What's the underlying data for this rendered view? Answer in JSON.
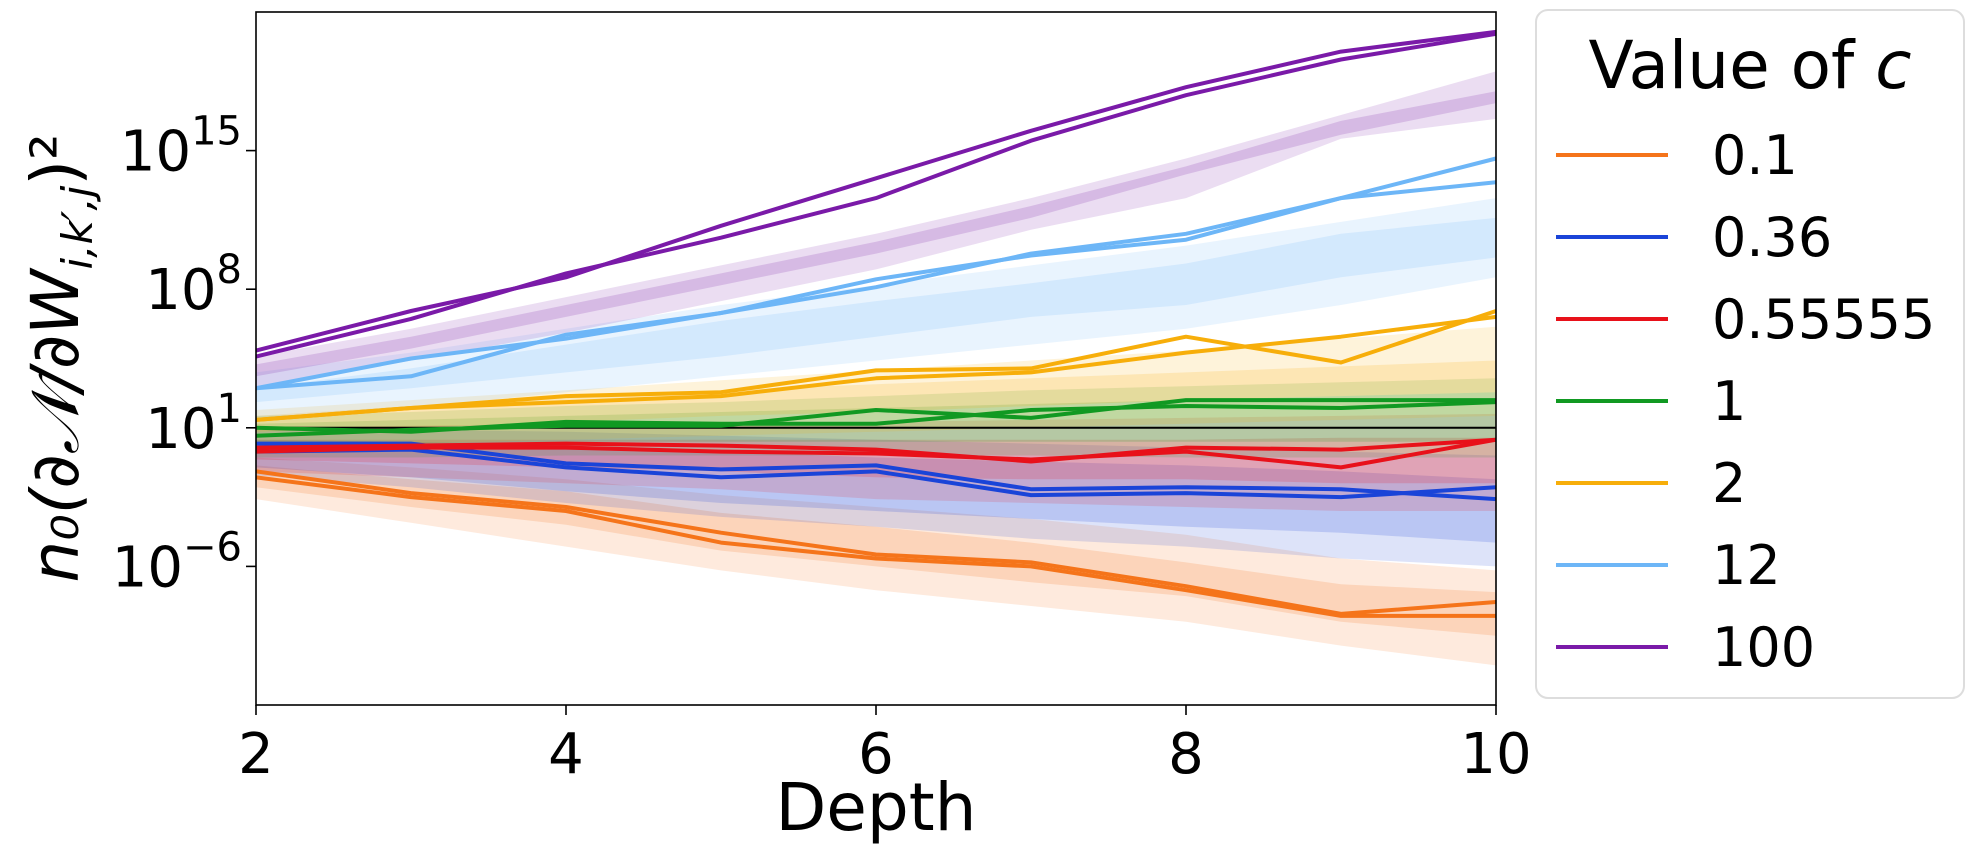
{
  "chart_data": {
    "type": "line",
    "xlabel": "Depth",
    "ylabel": "n₀(∂𝒩/∂W",
    "ylabel_sub": "i,k′,j",
    "ylabel_tail": ")²",
    "x_ticks": [
      2,
      4,
      6,
      8,
      10
    ],
    "y_tick_exponents": [
      -6,
      1,
      8,
      15
    ],
    "y_scale": "log",
    "xlim": [
      2,
      10
    ],
    "ylim_log10": [
      -13,
      22
    ],
    "grid": false,
    "reference_line_log10": 1,
    "legend": {
      "title_prefix": "Value of ",
      "title_var": "c",
      "placement": "outside-right"
    },
    "x": [
      2,
      3,
      4,
      5,
      6,
      7,
      8,
      9,
      10
    ],
    "series": [
      {
        "name": "0.1",
        "color": "#f5741a",
        "lines": [
          [
            -1.5,
            -2.5,
            -3.2,
            -4.8,
            -5.6,
            -6.0,
            -7.2,
            -8.5,
            -8.5
          ],
          [
            -1.2,
            -2.3,
            -3.0,
            -4.3,
            -5.4,
            -5.8,
            -7.0,
            -8.4,
            -7.8
          ]
        ],
        "band_outer_low": [
          -2.6,
          -3.8,
          -5.0,
          -6.2,
          -7.2,
          -8.0,
          -8.8,
          -10.0,
          -11.0
        ],
        "band_outer_high": [
          -0.5,
          -1.0,
          -1.6,
          -2.4,
          -3.0,
          -3.6,
          -4.4,
          -5.6,
          -6.2
        ],
        "band_inner_low": [
          -2.0,
          -3.0,
          -3.9,
          -5.2,
          -6.0,
          -6.8,
          -7.5,
          -8.8,
          -9.5
        ],
        "band_inner_high": [
          -0.9,
          -1.6,
          -2.2,
          -3.3,
          -4.0,
          -4.8,
          -5.8,
          -6.9,
          -7.3
        ]
      },
      {
        "name": "0.36",
        "color": "#1a44d8",
        "lines": [
          [
            -0.2,
            -0.1,
            -1.0,
            -1.5,
            -1.2,
            -2.4,
            -2.3,
            -2.5,
            -2.0
          ],
          [
            0.2,
            0.2,
            -0.8,
            -1.1,
            -0.9,
            -2.1,
            -2.0,
            -2.1,
            -2.6
          ]
        ],
        "band_outer_low": [
          -1.4,
          -2.0,
          -2.8,
          -3.5,
          -4.0,
          -4.6,
          -5.0,
          -5.6,
          -6.0
        ],
        "band_outer_high": [
          1.0,
          0.9,
          0.8,
          0.6,
          0.4,
          0.2,
          0.0,
          -0.2,
          -0.4
        ],
        "band_inner_low": [
          -1.0,
          -1.5,
          -2.2,
          -2.8,
          -3.2,
          -3.6,
          -4.0,
          -4.3,
          -4.8
        ],
        "band_inner_high": [
          0.4,
          0.3,
          0.1,
          -0.2,
          -0.5,
          -0.7,
          -0.9,
          -1.2,
          -1.6
        ]
      },
      {
        "name": "0.55555",
        "color": "#e8111a",
        "lines": [
          [
            0.0,
            0.1,
            0.2,
            0.1,
            -0.1,
            -0.7,
            0.0,
            -0.1,
            0.4
          ],
          [
            -0.2,
            0.0,
            0.0,
            -0.2,
            -0.3,
            -0.6,
            -0.2,
            -1.0,
            0.4
          ]
        ],
        "band_outer_low": [
          -1.2,
          -1.5,
          -1.8,
          -2.1,
          -2.6,
          -2.8,
          -3.0,
          -3.2,
          -3.2
        ],
        "band_outer_high": [
          1.0,
          1.1,
          1.2,
          1.2,
          1.3,
          1.4,
          1.5,
          1.6,
          1.7
        ],
        "band_inner_low": [
          -0.6,
          -0.8,
          -1.0,
          -1.2,
          -1.5,
          -1.6,
          -1.6,
          -1.8,
          -1.8
        ],
        "band_inner_high": [
          0.4,
          0.4,
          0.4,
          0.4,
          0.4,
          0.4,
          0.4,
          0.5,
          0.5
        ]
      },
      {
        "name": "1",
        "color": "#119922",
        "lines": [
          [
            1.0,
            0.8,
            1.3,
            1.2,
            1.2,
            1.9,
            2.1,
            2.0,
            2.3
          ],
          [
            0.6,
            0.9,
            1.1,
            1.1,
            1.9,
            1.5,
            2.4,
            2.4,
            2.4
          ]
        ],
        "band_outer_low": [
          -0.5,
          -0.5,
          -0.4,
          -0.4,
          -0.4,
          -0.4,
          -0.5,
          -0.5,
          -0.5
        ],
        "band_outer_high": [
          1.6,
          1.8,
          2.1,
          2.3,
          2.6,
          2.9,
          3.1,
          3.3,
          3.5
        ],
        "band_inner_low": [
          0.2,
          0.2,
          0.3,
          0.3,
          0.3,
          0.3,
          0.3,
          0.3,
          0.3
        ],
        "band_inner_high": [
          1.2,
          1.4,
          1.6,
          1.8,
          2.0,
          2.2,
          2.4,
          2.6,
          2.8
        ]
      },
      {
        "name": "2",
        "color": "#f7ae0a",
        "lines": [
          [
            1.4,
            2.0,
            2.6,
            2.8,
            3.9,
            4.0,
            5.6,
            4.3,
            6.9
          ],
          [
            1.4,
            2.0,
            2.3,
            2.6,
            3.5,
            3.8,
            4.8,
            5.6,
            6.6
          ]
        ],
        "band_outer_low": [
          0.0,
          0.2,
          0.4,
          0.6,
          0.8,
          1.0,
          1.2,
          1.4,
          1.6
        ],
        "band_outer_high": [
          1.9,
          2.4,
          2.9,
          3.4,
          3.9,
          4.4,
          4.9,
          5.5,
          6.1
        ],
        "band_inner_low": [
          0.8,
          1.0,
          1.3,
          1.6,
          1.8,
          2.1,
          2.4,
          2.6,
          2.8
        ],
        "band_inner_high": [
          1.6,
          2.1,
          2.5,
          2.9,
          3.2,
          3.5,
          3.8,
          4.1,
          4.4
        ]
      },
      {
        "name": "12",
        "color": "#6db6f7",
        "lines": [
          [
            3.0,
            3.6,
            5.7,
            6.8,
            8.5,
            9.7,
            10.5,
            12.6,
            14.6
          ],
          [
            3.0,
            4.5,
            5.5,
            6.8,
            8.1,
            9.8,
            10.8,
            12.6,
            13.4
          ]
        ],
        "band_outer_low": [
          1.5,
          2.0,
          2.8,
          3.6,
          4.4,
          5.2,
          6.0,
          7.2,
          8.6
        ],
        "band_outer_high": [
          3.8,
          4.8,
          6.0,
          7.2,
          8.2,
          9.2,
          10.2,
          11.4,
          12.6
        ],
        "band_inner_low": [
          2.3,
          3.0,
          3.8,
          4.6,
          5.6,
          6.6,
          7.2,
          8.6,
          9.6
        ],
        "band_inner_high": [
          3.0,
          4.0,
          5.2,
          6.4,
          7.4,
          8.3,
          9.3,
          10.8,
          11.6
        ]
      },
      {
        "name": "100",
        "color": "#7a1aa8",
        "lines": [
          [
            4.6,
            6.5,
            8.8,
            10.6,
            12.6,
            15.5,
            17.8,
            19.6,
            20.9
          ],
          [
            4.9,
            6.9,
            8.6,
            11.2,
            13.6,
            16.0,
            18.2,
            20.0,
            21.0
          ]
        ],
        "band_outer_low": [
          3.0,
          4.4,
          5.8,
          7.4,
          9.0,
          11.0,
          12.6,
          15.6,
          16.6
        ],
        "band_outer_high": [
          4.6,
          6.0,
          7.6,
          9.2,
          10.8,
          12.6,
          14.6,
          16.8,
          19.0
        ],
        "band_inner_low": [
          3.6,
          5.0,
          6.6,
          8.2,
          9.8,
          11.6,
          13.8,
          15.8,
          17.4
        ],
        "band_inner_high": [
          4.2,
          5.6,
          7.2,
          8.8,
          10.4,
          12.2,
          14.2,
          16.5,
          18.0
        ]
      }
    ]
  }
}
